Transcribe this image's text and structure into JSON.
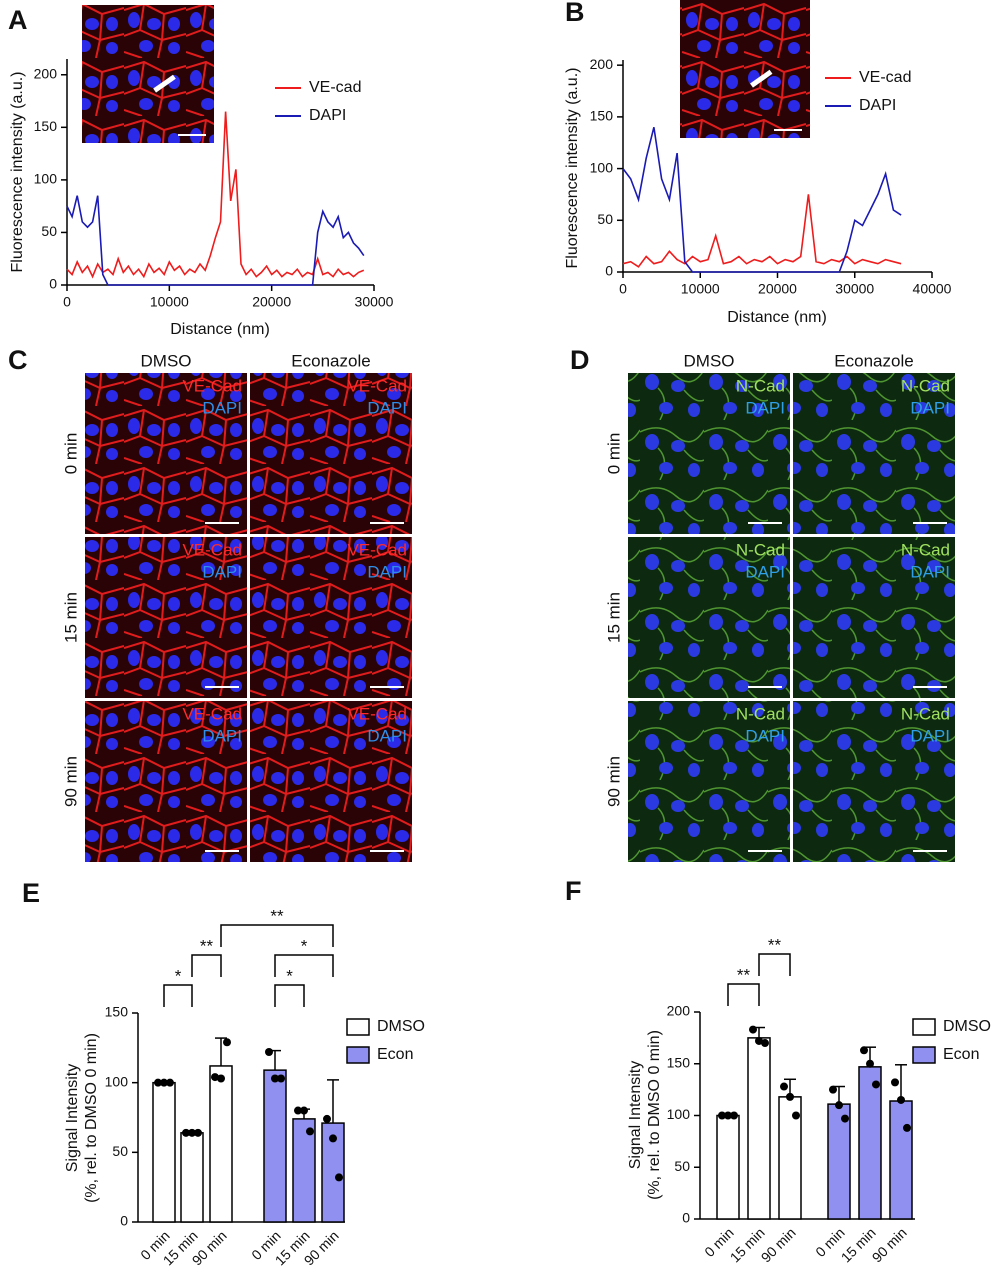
{
  "chart_data": [
    {
      "type": "line",
      "panel": "A",
      "x_label": "Distance (nm)",
      "y_label": "Fluorescence intensity (a.u.)",
      "xlim": [
        0,
        30000
      ],
      "xticks": [
        0,
        10000,
        20000,
        30000
      ],
      "ylim": [
        0,
        215
      ],
      "yticks": [
        0,
        50,
        100,
        150,
        200
      ],
      "x": [
        0,
        500,
        1000,
        1500,
        2000,
        2500,
        3000,
        3500,
        4000,
        4500,
        5000,
        5500,
        6000,
        6500,
        7000,
        7500,
        8000,
        8500,
        9000,
        9500,
        10000,
        10500,
        11000,
        11500,
        12000,
        12500,
        13000,
        13500,
        14000,
        14500,
        15000,
        15500,
        16000,
        16500,
        17000,
        17500,
        18000,
        18500,
        19000,
        19500,
        20000,
        20500,
        21000,
        21500,
        22000,
        22500,
        23000,
        23500,
        24000,
        24500,
        25000,
        25500,
        26000,
        26500,
        27000,
        27500,
        28000,
        28500,
        29000
      ],
      "series": [
        {
          "name": "VE-cad",
          "color": "#ee1c1c",
          "values": [
            15,
            10,
            22,
            12,
            18,
            8,
            20,
            12,
            15,
            10,
            25,
            12,
            18,
            10,
            15,
            8,
            20,
            12,
            16,
            10,
            22,
            14,
            18,
            10,
            15,
            12,
            20,
            14,
            28,
            45,
            60,
            165,
            80,
            110,
            20,
            10,
            15,
            8,
            12,
            18,
            10,
            14,
            8,
            12,
            10,
            15,
            8,
            12,
            10,
            25,
            10,
            12,
            8,
            15,
            10,
            12,
            8,
            12,
            14
          ]
        },
        {
          "name": "DAPI",
          "color": "#1a1ab4",
          "values": [
            75,
            65,
            85,
            60,
            55,
            60,
            85,
            10,
            0,
            0,
            0,
            0,
            0,
            0,
            0,
            0,
            0,
            0,
            0,
            0,
            0,
            0,
            0,
            0,
            0,
            0,
            0,
            0,
            0,
            0,
            0,
            0,
            0,
            0,
            0,
            0,
            0,
            0,
            0,
            0,
            0,
            0,
            0,
            0,
            0,
            0,
            0,
            0,
            0,
            50,
            70,
            60,
            55,
            65,
            45,
            50,
            40,
            35,
            28
          ]
        }
      ]
    },
    {
      "type": "line",
      "panel": "B",
      "x_label": "Distance (nm)",
      "y_label": "Fluorescence intensity (a.u.)",
      "xlim": [
        0,
        40000
      ],
      "xticks": [
        0,
        10000,
        20000,
        30000,
        40000
      ],
      "ylim": [
        0,
        205
      ],
      "yticks": [
        0,
        50,
        100,
        150,
        200
      ],
      "x": [
        0,
        1000,
        2000,
        3000,
        4000,
        5000,
        6000,
        7000,
        8000,
        9000,
        10000,
        11000,
        12000,
        13000,
        14000,
        15000,
        16000,
        17000,
        18000,
        19000,
        20000,
        21000,
        22000,
        23000,
        24000,
        25000,
        26000,
        27000,
        28000,
        29000,
        30000,
        31000,
        32000,
        33000,
        34000,
        35000,
        36000
      ],
      "series": [
        {
          "name": "VE-cad",
          "color": "#ee1c1c",
          "values": [
            8,
            10,
            5,
            15,
            8,
            10,
            20,
            12,
            8,
            15,
            10,
            12,
            35,
            8,
            10,
            15,
            8,
            12,
            10,
            15,
            8,
            12,
            10,
            15,
            75,
            10,
            8,
            12,
            10,
            15,
            8,
            12,
            10,
            8,
            12,
            10,
            8
          ]
        },
        {
          "name": "DAPI",
          "color": "#1a1ab4",
          "values": [
            100,
            90,
            70,
            110,
            140,
            90,
            70,
            115,
            10,
            0,
            0,
            0,
            0,
            0,
            0,
            0,
            0,
            0,
            0,
            0,
            0,
            0,
            0,
            0,
            0,
            0,
            0,
            0,
            0,
            20,
            50,
            45,
            60,
            75,
            95,
            60,
            55
          ]
        }
      ]
    },
    {
      "type": "bar",
      "panel": "E",
      "y_label": [
        "Signal Intensity",
        "(%, rel. to DMSO 0 min)"
      ],
      "ylim": [
        0,
        150
      ],
      "yticks": [
        0,
        50,
        100,
        150
      ],
      "categories": [
        "0 min",
        "15 min",
        "90 min"
      ],
      "series": [
        {
          "name": "DMSO",
          "color": "#ffffff",
          "values": [
            100,
            64,
            112
          ],
          "errors": [
            0,
            1,
            20
          ],
          "points": [
            [
              100,
              100,
              100
            ],
            [
              64,
              64,
              64
            ],
            [
              104,
              103,
              129
            ]
          ]
        },
        {
          "name": "Econ",
          "color": "#9090f0",
          "values": [
            109,
            74,
            71
          ],
          "errors": [
            14,
            7,
            31
          ],
          "points": [
            [
              122,
              103,
              103
            ],
            [
              80,
              80,
              65
            ],
            [
              74,
              60,
              32
            ]
          ]
        }
      ],
      "significance": [
        {
          "bars": [
            0,
            1
          ],
          "label": "*"
        },
        {
          "bars": [
            1,
            2
          ],
          "label": "**"
        },
        {
          "bars": [
            3,
            4
          ],
          "label": "*"
        },
        {
          "bars": [
            3,
            5
          ],
          "label": "*"
        },
        {
          "bars": [
            2,
            5
          ],
          "label": "**"
        }
      ]
    },
    {
      "type": "bar",
      "panel": "F",
      "y_label": [
        "Signal Intensity",
        "(%, rel. to DMSO 0 min)"
      ],
      "ylim": [
        0,
        200
      ],
      "yticks": [
        0,
        50,
        100,
        150,
        200
      ],
      "categories": [
        "0 min",
        "15 min",
        "90 min"
      ],
      "series": [
        {
          "name": "DMSO",
          "color": "#ffffff",
          "values": [
            100,
            175,
            118
          ],
          "errors": [
            1,
            10,
            17
          ],
          "points": [
            [
              100,
              100,
              100
            ],
            [
              183,
              172,
              170
            ],
            [
              128,
              118,
              100
            ]
          ]
        },
        {
          "name": "Econ",
          "color": "#9090f0",
          "values": [
            111,
            147,
            114
          ],
          "errors": [
            17,
            19,
            35
          ],
          "points": [
            [
              125,
              110,
              97
            ],
            [
              163,
              150,
              130
            ],
            [
              132,
              115,
              88
            ]
          ]
        }
      ],
      "significance": [
        {
          "bars": [
            0,
            1
          ],
          "label": "**"
        },
        {
          "bars": [
            1,
            2
          ],
          "label": "**"
        }
      ]
    }
  ],
  "image_panels": [
    {
      "panel": "C",
      "columns": [
        "DMSO",
        "Econazole"
      ],
      "rows": [
        "0 min",
        "15 min",
        "90 min"
      ],
      "channels": [
        "VE-Cad",
        "DAPI"
      ],
      "channel_colors": [
        "#ff2a2a",
        "#2f8fe8"
      ]
    },
    {
      "panel": "D",
      "columns": [
        "DMSO",
        "Econazole"
      ],
      "rows": [
        "0 min",
        "15 min",
        "90 min"
      ],
      "channels": [
        "N-Cad",
        "DAPI"
      ],
      "channel_colors": [
        "#a0e060",
        "#2fa0e8"
      ]
    }
  ]
}
